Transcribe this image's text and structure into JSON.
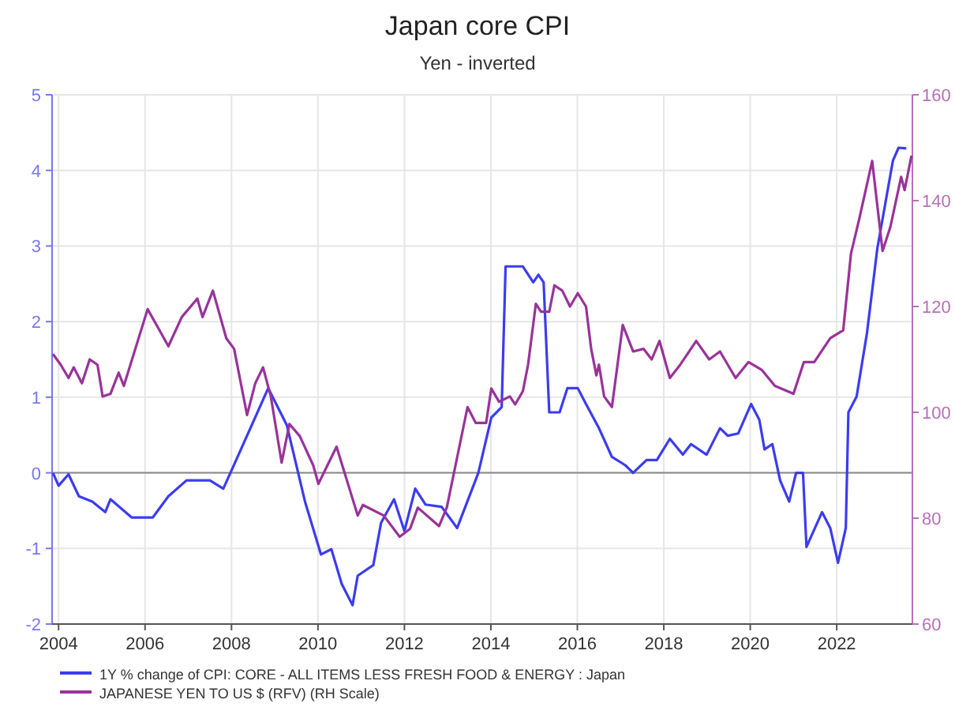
{
  "chart_data": {
    "type": "line",
    "title": "Japan core CPI",
    "subtitle": "Yen - inverted",
    "xlim": [
      2003.85,
      2023.75
    ],
    "xticks": [
      2004,
      2006,
      2008,
      2010,
      2012,
      2014,
      2016,
      2018,
      2020,
      2022
    ],
    "ylim": [
      -2,
      5
    ],
    "yticks": [
      -2,
      -1,
      0,
      1,
      2,
      3,
      4,
      5
    ],
    "y2lim": [
      60,
      160
    ],
    "y2ticks": [
      60,
      80,
      100,
      120,
      140,
      160
    ],
    "grid": true,
    "legend": "bottom",
    "line_style": "solid",
    "ref_lines": [
      {
        "axis": "y",
        "value": 0,
        "color": "#888888"
      }
    ],
    "series": [
      {
        "name": "1Y % change of CPI: CORE - ALL ITEMS LESS FRESH FOOD & ENERGY : Japan",
        "color": "#3c3cf0",
        "x": [
          2003.87,
          2004.0,
          2004.23,
          2004.47,
          2004.78,
          2005.08,
          2005.2,
          2005.69,
          2006.18,
          2006.54,
          2006.96,
          2007.5,
          2007.81,
          2008.0,
          2008.85,
          2009.28,
          2009.7,
          2010.07,
          2010.31,
          2010.55,
          2010.8,
          2010.92,
          2011.28,
          2011.46,
          2011.76,
          2012.0,
          2012.25,
          2012.49,
          2012.86,
          2013.22,
          2013.71,
          2014.01,
          2014.25,
          2014.34,
          2014.74,
          2014.98,
          2015.1,
          2015.22,
          2015.35,
          2015.59,
          2015.77,
          2016.01,
          2016.2,
          2016.5,
          2016.8,
          2017.11,
          2017.29,
          2017.6,
          2017.84,
          2018.14,
          2018.44,
          2018.63,
          2018.99,
          2019.3,
          2019.48,
          2019.72,
          2020.02,
          2020.21,
          2020.33,
          2020.51,
          2020.69,
          2020.9,
          2021.06,
          2021.22,
          2021.3,
          2021.66,
          2021.85,
          2022.03,
          2022.21,
          2022.27,
          2022.46,
          2022.7,
          2022.94,
          2023.3,
          2023.43,
          2023.61
        ],
        "values": [
          0,
          -0.17,
          -0.02,
          -0.31,
          -0.38,
          -0.52,
          -0.35,
          -0.59,
          -0.59,
          -0.31,
          -0.1,
          -0.1,
          -0.21,
          0.03,
          1.12,
          0.63,
          -0.38,
          -1.08,
          -1.01,
          -1.47,
          -1.75,
          -1.36,
          -1.22,
          -0.66,
          -0.35,
          -0.77,
          -0.21,
          -0.42,
          -0.45,
          -0.73,
          0,
          0.73,
          0.87,
          2.73,
          2.73,
          2.52,
          2.62,
          2.52,
          0.8,
          0.8,
          1.12,
          1.12,
          0.91,
          0.59,
          0.21,
          0.1,
          0,
          0.17,
          0.17,
          0.45,
          0.24,
          0.38,
          0.24,
          0.59,
          0.49,
          0.52,
          0.91,
          0.7,
          0.31,
          0.38,
          -0.1,
          -0.38,
          0,
          0,
          -0.98,
          -0.52,
          -0.73,
          -1.19,
          -0.73,
          0.8,
          1.01,
          1.85,
          2.97,
          4.13,
          4.3,
          4.29
        ]
      },
      {
        "name": "JAPANESE YEN TO US $ (RFV) (RH Scale)",
        "color": "#993399",
        "axis": "y2",
        "x": [
          2003.87,
          2004.05,
          2004.23,
          2004.35,
          2004.54,
          2004.72,
          2004.9,
          2005.02,
          2005.2,
          2005.39,
          2005.51,
          2006.06,
          2006.3,
          2006.54,
          2006.85,
          2007.21,
          2007.33,
          2007.57,
          2007.88,
          2008.06,
          2008.36,
          2008.55,
          2008.73,
          2008.91,
          2009.16,
          2009.34,
          2009.58,
          2009.89,
          2010.01,
          2010.43,
          2010.92,
          2011.04,
          2011.52,
          2011.89,
          2012.13,
          2012.31,
          2012.8,
          2012.98,
          2013.22,
          2013.46,
          2013.65,
          2013.89,
          2014.01,
          2014.19,
          2014.44,
          2014.56,
          2014.74,
          2014.86,
          2015.04,
          2015.16,
          2015.35,
          2015.47,
          2015.65,
          2015.83,
          2016.01,
          2016.2,
          2016.32,
          2016.44,
          2016.5,
          2016.62,
          2016.8,
          2017.05,
          2017.29,
          2017.53,
          2017.72,
          2017.9,
          2018.14,
          2018.38,
          2018.75,
          2019.05,
          2019.3,
          2019.66,
          2019.96,
          2020.27,
          2020.57,
          2021.0,
          2021.24,
          2021.48,
          2021.85,
          2022.15,
          2022.33,
          2022.52,
          2022.82,
          2023.06,
          2023.24,
          2023.49,
          2023.57,
          2023.73
        ],
        "values": [
          111,
          109,
          106.5,
          108.5,
          105.5,
          110,
          109,
          103,
          103.5,
          107.5,
          105,
          119.5,
          116,
          112.5,
          118,
          121.5,
          118,
          123,
          114,
          112,
          99.5,
          105.5,
          108.5,
          103,
          90.5,
          97.8,
          95.5,
          90,
          86.5,
          93.5,
          80.5,
          82.5,
          80.5,
          76.5,
          78,
          82,
          78.5,
          82,
          91.5,
          101,
          98,
          98,
          104.5,
          102,
          103,
          101.5,
          104,
          109,
          120.5,
          119,
          119,
          124,
          123,
          120,
          122.5,
          120,
          112,
          107,
          109,
          103,
          101,
          116.5,
          111.5,
          112,
          110,
          113.5,
          106.5,
          109,
          113.5,
          110,
          111.5,
          106.5,
          109.5,
          108,
          105,
          103.5,
          109.5,
          109.5,
          114,
          115.5,
          130,
          136.5,
          147.5,
          130.5,
          135,
          144.5,
          142,
          148.5
        ]
      }
    ]
  }
}
